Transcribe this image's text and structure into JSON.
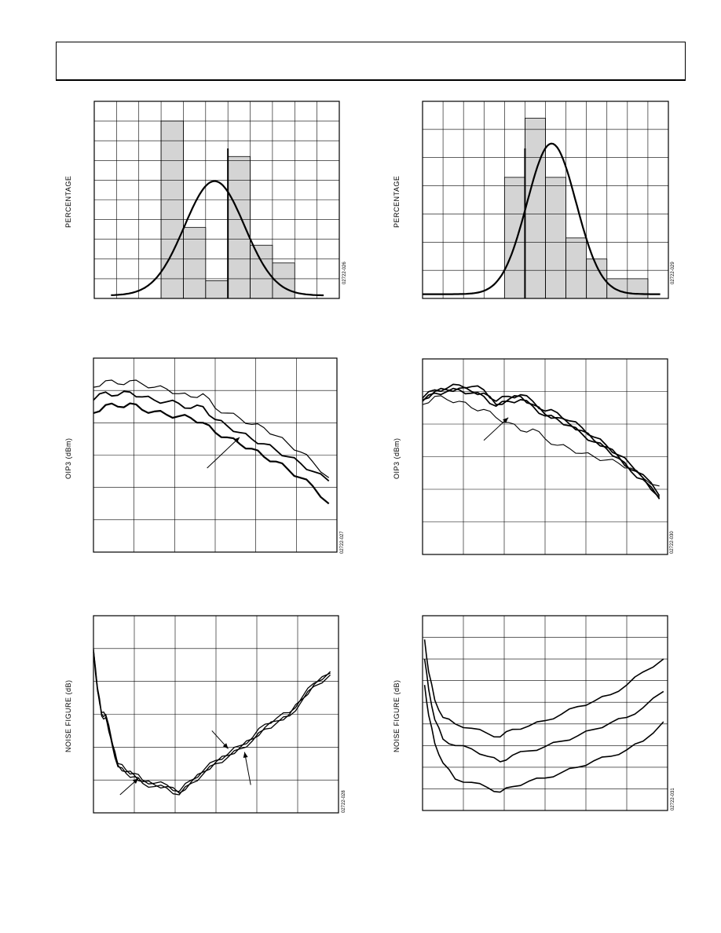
{
  "header": {
    "title": ""
  },
  "chart_data": [
    {
      "id": "hist1",
      "type": "bar",
      "ylabel": "PERCENTAGE",
      "code": "02722-026",
      "grid": {
        "cols": 11,
        "rows": 10
      },
      "xlim": [
        0,
        11
      ],
      "ylim": [
        0,
        10
      ],
      "bars": [
        {
          "x": 3,
          "w": 1,
          "v": 9.0
        },
        {
          "x": 4,
          "w": 1,
          "v": 3.6
        },
        {
          "x": 5,
          "w": 1,
          "v": 0.9
        },
        {
          "x": 6,
          "w": 1,
          "v": 7.2
        },
        {
          "x": 7,
          "w": 1,
          "v": 2.7
        },
        {
          "x": 8,
          "w": 1,
          "v": 1.8
        }
      ],
      "curve": {
        "mean": 5.4,
        "sd": 1.35,
        "peak": 5.8,
        "x0": 0.75,
        "x1": 10.3
      },
      "dividers": [
        6
      ]
    },
    {
      "id": "hist2",
      "type": "bar",
      "ylabel": "PERCENTAGE",
      "code": "02722-029",
      "grid": {
        "cols": 12,
        "rows": 7
      },
      "xlim": [
        0,
        12
      ],
      "ylim": [
        0,
        7
      ],
      "bars": [
        {
          "x": 4,
          "w": 1,
          "v": 4.3
        },
        {
          "x": 5,
          "w": 1,
          "v": 6.4
        },
        {
          "x": 6,
          "w": 1,
          "v": 4.3
        },
        {
          "x": 7,
          "w": 1,
          "v": 2.15
        },
        {
          "x": 8,
          "w": 1,
          "v": 1.4
        },
        {
          "x": 9,
          "w": 2,
          "v": 0.7
        }
      ],
      "curve": {
        "mean": 6.3,
        "sd": 1.2,
        "peak": 5.35,
        "x0": 0,
        "x1": 11.6
      },
      "dividers": [
        5
      ]
    },
    {
      "id": "oip3-left",
      "type": "line",
      "ylabel": "OIP3 (dBm)",
      "code": "02722-027",
      "grid": {
        "cols": 6,
        "rows": 6
      },
      "xlim": [
        0,
        6
      ],
      "ylim": [
        0,
        6
      ],
      "series": [
        {
          "x": [
            0,
            0.3,
            0.6,
            0.9,
            1.2,
            1.5,
            1.8,
            2.1,
            2.4,
            2.7,
            3.0,
            3.3,
            3.6,
            3.9,
            4.2,
            4.5,
            4.8,
            5.1,
            5.4,
            5.8
          ],
          "y": [
            5.1,
            5.3,
            5.2,
            5.3,
            5.2,
            5.1,
            5.05,
            4.9,
            4.8,
            4.9,
            4.45,
            4.3,
            4.15,
            3.95,
            3.85,
            3.6,
            3.35,
            3.1,
            2.8,
            2.3
          ],
          "w": 1.2
        },
        {
          "x": [
            0,
            0.3,
            0.6,
            0.9,
            1.2,
            1.5,
            1.8,
            2.1,
            2.4,
            2.7,
            3.0,
            3.3,
            3.6,
            3.9,
            4.2,
            4.5,
            4.8,
            5.1,
            5.4,
            5.8
          ],
          "y": [
            4.7,
            4.95,
            4.85,
            4.95,
            4.8,
            4.7,
            4.65,
            4.6,
            4.45,
            4.5,
            4.1,
            3.9,
            3.7,
            3.5,
            3.35,
            3.15,
            2.95,
            2.75,
            2.5,
            2.2
          ],
          "w": 1.8
        },
        {
          "x": [
            0,
            0.3,
            0.6,
            0.9,
            1.2,
            1.5,
            1.8,
            2.1,
            2.4,
            2.7,
            3.0,
            3.3,
            3.6,
            3.9,
            4.2,
            4.5,
            4.8,
            5.1,
            5.4,
            5.8
          ],
          "y": [
            4.3,
            4.55,
            4.5,
            4.6,
            4.4,
            4.35,
            4.25,
            4.2,
            4.15,
            4.0,
            3.7,
            3.55,
            3.35,
            3.2,
            2.95,
            2.8,
            2.55,
            2.3,
            2.05,
            1.5
          ],
          "w": 2.2
        }
      ],
      "arrows": [
        {
          "x1": 2.8,
          "y1": 2.6,
          "x2": 3.6,
          "y2": 3.55
        }
      ]
    },
    {
      "id": "oip3-right",
      "type": "line",
      "ylabel": "OIP3 (dBm)",
      "code": "02722-030",
      "grid": {
        "cols": 6,
        "rows": 6
      },
      "xlim": [
        0,
        6
      ],
      "ylim": [
        0,
        6
      ],
      "series": [
        {
          "x": [
            0,
            0.3,
            0.6,
            0.9,
            1.2,
            1.5,
            1.8,
            2.1,
            2.4,
            2.7,
            3.0,
            3.3,
            3.6,
            3.9,
            4.2,
            4.5,
            4.8,
            5.1,
            5.4,
            5.8
          ],
          "y": [
            4.6,
            4.85,
            4.75,
            4.7,
            4.5,
            4.45,
            4.2,
            4.05,
            3.8,
            3.85,
            3.55,
            3.35,
            3.25,
            3.1,
            3.0,
            2.9,
            2.8,
            2.65,
            2.35,
            2.1
          ],
          "w": 1.1
        },
        {
          "x": [
            0,
            0.3,
            0.6,
            0.9,
            1.2,
            1.5,
            1.8,
            2.1,
            2.4,
            2.7,
            3.0,
            3.3,
            3.6,
            3.9,
            4.2,
            4.5,
            4.8,
            5.1,
            5.4,
            5.8
          ],
          "y": [
            4.8,
            5.05,
            5.1,
            5.2,
            5.15,
            5.05,
            4.7,
            4.85,
            4.9,
            4.7,
            4.4,
            4.35,
            4.1,
            3.9,
            3.6,
            3.35,
            3.05,
            2.75,
            2.45,
            1.8
          ],
          "w": 1.7
        },
        {
          "x": [
            0,
            0.3,
            0.6,
            0.9,
            1.2,
            1.5,
            1.8,
            2.1,
            2.4,
            2.7,
            3.0,
            3.3,
            3.6,
            3.9,
            4.2,
            4.5,
            4.8,
            5.1,
            5.4,
            5.8
          ],
          "y": [
            4.75,
            5.0,
            5.05,
            5.1,
            5.0,
            4.95,
            4.6,
            4.75,
            4.85,
            4.6,
            4.3,
            4.2,
            4.0,
            3.8,
            3.5,
            3.3,
            3.0,
            2.6,
            2.35,
            1.75
          ],
          "w": 1.7
        },
        {
          "x": [
            0,
            0.3,
            0.6,
            0.9,
            1.2,
            1.5,
            1.8,
            2.1,
            2.4,
            2.7,
            3.0,
            3.3,
            3.6,
            3.9,
            4.2,
            4.5,
            4.8,
            5.1,
            5.4,
            5.8
          ],
          "y": [
            4.7,
            4.95,
            5.0,
            5.05,
            4.95,
            4.85,
            4.55,
            4.7,
            4.75,
            4.55,
            4.25,
            4.15,
            3.95,
            3.7,
            3.45,
            3.25,
            2.95,
            2.55,
            2.3,
            1.7
          ],
          "w": 1.7
        }
      ],
      "arrows": [
        {
          "x1": 1.5,
          "y1": 3.5,
          "x2": 2.1,
          "y2": 4.2
        }
      ]
    },
    {
      "id": "nf-left",
      "type": "line",
      "ylabel": "NOISE FIGURE (dB)",
      "code": "02722-028",
      "grid": {
        "cols": 6,
        "rows": 6
      },
      "xlim": [
        0,
        6
      ],
      "ylim": [
        0,
        6
      ],
      "series": [
        {
          "x": [
            0,
            0.1,
            0.2,
            0.3,
            0.45,
            0.6,
            0.8,
            1.0,
            1.2,
            1.5,
            1.8,
            2.1,
            2.4,
            2.7,
            3.0,
            3.3,
            3.6,
            3.9,
            4.2,
            4.5,
            4.8,
            5.1,
            5.4,
            5.8
          ],
          "y": [
            5.0,
            3.8,
            3.0,
            3.0,
            2.2,
            1.5,
            1.3,
            1.2,
            1.0,
            0.9,
            0.85,
            0.65,
            1.0,
            1.3,
            1.6,
            1.8,
            2.05,
            2.3,
            2.7,
            2.9,
            3.05,
            3.5,
            3.95,
            4.3
          ],
          "w": 1.3
        },
        {
          "x": [
            0,
            0.1,
            0.2,
            0.3,
            0.45,
            0.6,
            0.8,
            1.0,
            1.2,
            1.5,
            1.8,
            2.1,
            2.4,
            2.7,
            3.0,
            3.3,
            3.6,
            3.9,
            4.2,
            4.5,
            4.8,
            5.1,
            5.4,
            5.8
          ],
          "y": [
            4.95,
            3.75,
            3.05,
            2.95,
            2.15,
            1.45,
            1.25,
            1.15,
            0.95,
            0.85,
            0.8,
            0.6,
            0.95,
            1.25,
            1.55,
            1.75,
            2.0,
            2.25,
            2.6,
            2.8,
            3.0,
            3.45,
            3.9,
            4.25
          ],
          "w": 1.3
        },
        {
          "x": [
            0,
            0.1,
            0.2,
            0.3,
            0.45,
            0.6,
            0.8,
            1.0,
            1.2,
            1.5,
            1.8,
            2.1,
            2.4,
            2.7,
            3.0,
            3.3,
            3.6,
            3.9,
            4.2,
            4.5,
            4.8,
            5.1,
            5.4,
            5.8
          ],
          "y": [
            4.9,
            3.7,
            2.95,
            2.9,
            2.1,
            1.4,
            1.2,
            1.1,
            0.9,
            0.8,
            0.75,
            0.55,
            0.9,
            1.2,
            1.5,
            1.7,
            1.95,
            2.2,
            2.55,
            2.75,
            2.95,
            3.4,
            3.85,
            4.2
          ],
          "w": 1.3
        }
      ],
      "arrows": [
        {
          "x1": 0.65,
          "y1": 0.55,
          "x2": 1.1,
          "y2": 1.05
        },
        {
          "x1": 2.9,
          "y1": 2.5,
          "x2": 3.3,
          "y2": 1.95
        },
        {
          "x1": 3.85,
          "y1": 0.85,
          "x2": 3.7,
          "y2": 1.85
        }
      ]
    },
    {
      "id": "nf-right",
      "type": "line",
      "ylabel": "NOISE FIGURE (dB)",
      "code": "02722-031",
      "grid": {
        "cols": 6,
        "rows": 9
      },
      "xlim": [
        0,
        6
      ],
      "ylim": [
        0,
        9
      ],
      "series": [
        {
          "x": [
            0.05,
            0.15,
            0.3,
            0.5,
            0.8,
            1.2,
            1.6,
            1.9,
            2.2,
            2.6,
            3.0,
            3.4,
            3.8,
            4.2,
            4.6,
            5.0,
            5.4,
            5.9
          ],
          "y": [
            7.9,
            6.4,
            5.1,
            4.3,
            4.0,
            3.8,
            3.55,
            3.4,
            3.75,
            3.9,
            4.15,
            4.45,
            4.8,
            5.05,
            5.35,
            5.8,
            6.4,
            7.0
          ],
          "w": 1.6
        },
        {
          "x": [
            0.05,
            0.15,
            0.3,
            0.5,
            0.8,
            1.2,
            1.6,
            1.9,
            2.2,
            2.6,
            3.0,
            3.4,
            3.8,
            4.2,
            4.6,
            5.0,
            5.4,
            5.9
          ],
          "y": [
            7.0,
            5.6,
            4.2,
            3.3,
            3.0,
            2.85,
            2.5,
            2.25,
            2.55,
            2.75,
            2.95,
            3.2,
            3.45,
            3.75,
            4.05,
            4.3,
            4.75,
            5.5
          ],
          "w": 1.6
        },
        {
          "x": [
            0.05,
            0.15,
            0.3,
            0.5,
            0.8,
            1.2,
            1.6,
            1.9,
            2.2,
            2.6,
            3.0,
            3.4,
            3.8,
            4.2,
            4.6,
            5.0,
            5.4,
            5.9
          ],
          "y": [
            5.8,
            4.4,
            3.1,
            2.2,
            1.45,
            1.3,
            1.05,
            0.85,
            1.1,
            1.35,
            1.5,
            1.75,
            2.0,
            2.3,
            2.5,
            2.8,
            3.2,
            4.1
          ],
          "w": 1.6
        }
      ],
      "arrows": []
    }
  ]
}
